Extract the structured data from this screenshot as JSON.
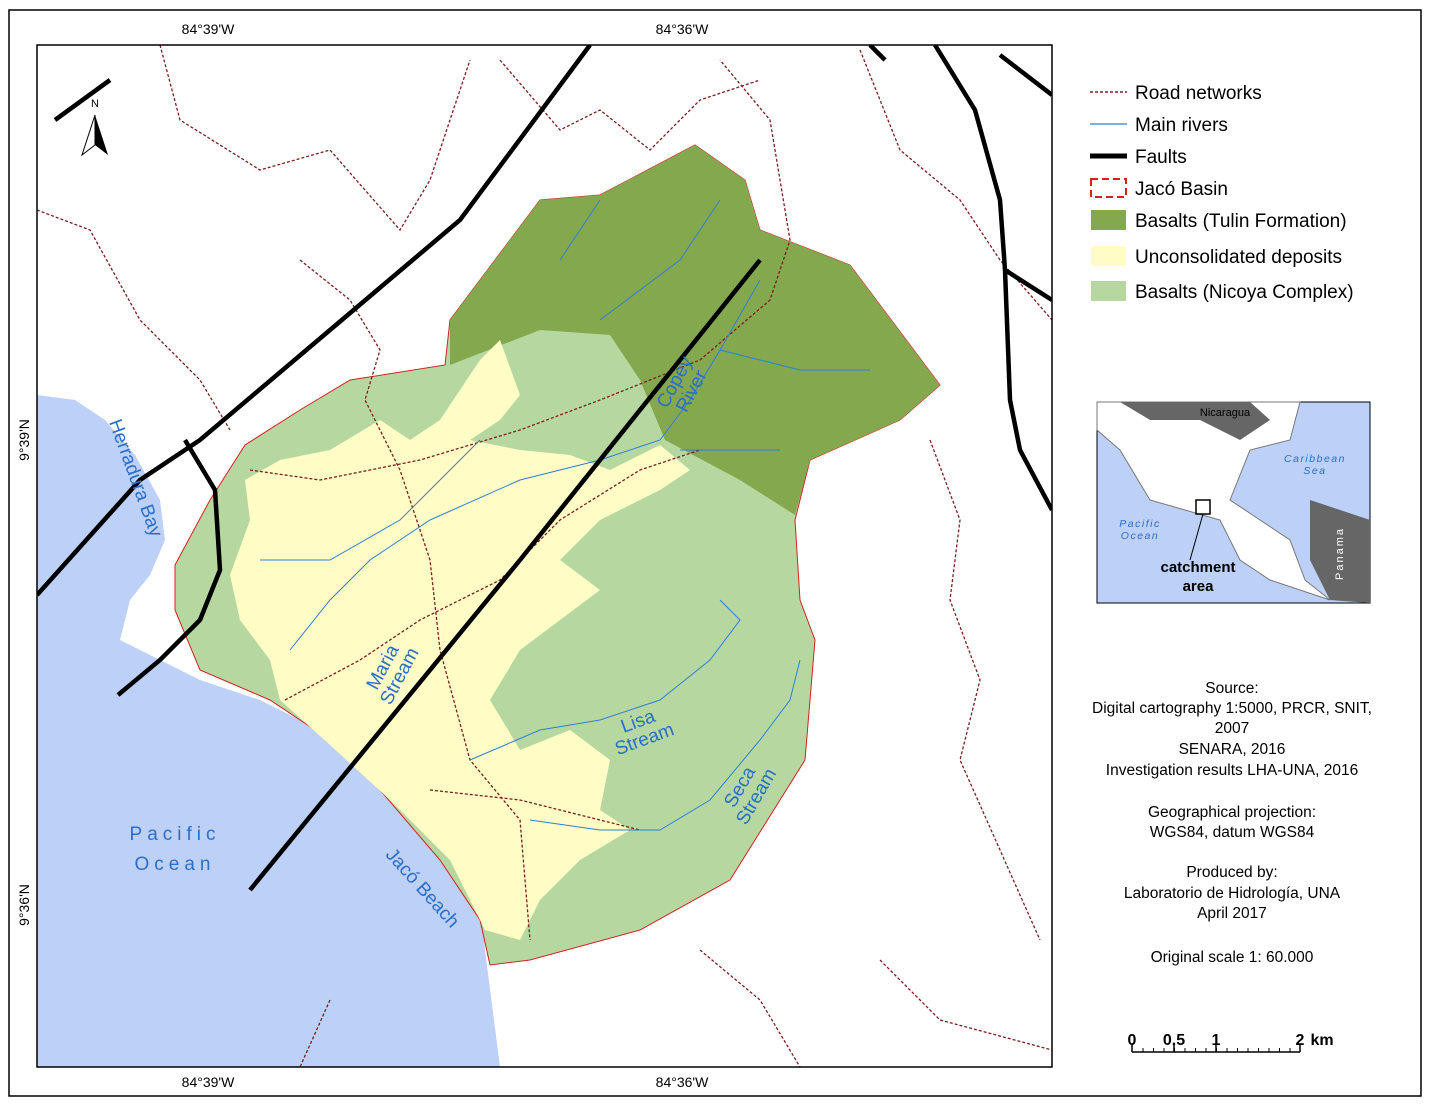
{
  "coordinates": {
    "top": [
      "84°39'W",
      "84°36'W"
    ],
    "bottom": [
      "84°39'W",
      "84°36'W"
    ],
    "left": [
      "9°39'N",
      "9°36'N"
    ]
  },
  "north_arrow": "N",
  "legend": [
    {
      "label": "Road networks",
      "color": "#7a1f1f"
    },
    {
      "label": "Main rivers",
      "color": "#2f7fd6"
    },
    {
      "label": "Faults",
      "color": "#000000"
    },
    {
      "label": "Jacó Basin",
      "color": "#d42020"
    },
    {
      "label": "Basalts (Tulin Formation)",
      "color": "#84a84e"
    },
    {
      "label": "Unconsolidated deposits",
      "color": "#fffcc6"
    },
    {
      "label": "Basalts (Nicoya Complex)",
      "color": "#b6d8a0"
    }
  ],
  "map_labels": {
    "herradura_bay": "Herradura Bay",
    "pacific_ocean": [
      "Pacific",
      "Ocean"
    ],
    "jaco_beach": "Jacó Beach",
    "maria_stream": [
      "Maria",
      "Stream"
    ],
    "copey_river": [
      "Copey",
      "River"
    ],
    "lisa_stream": [
      "Lisa",
      "Stream"
    ],
    "seca_stream": [
      "Seca",
      "Stream"
    ]
  },
  "inset": {
    "nicaragua": "Nicaragua",
    "caribbean_sea": [
      "Caribbean",
      "Sea"
    ],
    "pacific_ocean": [
      "Pacific",
      "Ocean"
    ],
    "panama": "Panama",
    "catchment_area": [
      "catchment",
      "area"
    ]
  },
  "source": [
    "Source:",
    "Digital cartography 1:5000, PRCR, SNIT,",
    "2007",
    "SENARA, 2016",
    "Investigation results LHA-UNA, 2016",
    "Geographical projection:",
    "WGS84, datum WGS84",
    "Produced by:",
    "Laboratorio de Hidrología, UNA",
    "April 2017",
    "Original scale 1: 60.000"
  ],
  "scale_bar": [
    "0",
    "0.5",
    "1",
    "2",
    "km"
  ]
}
